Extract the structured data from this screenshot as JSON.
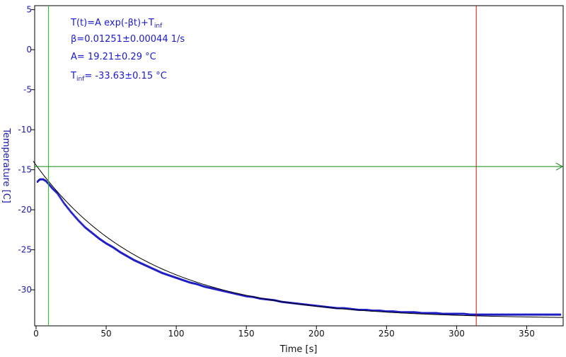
{
  "chart_data": {
    "type": "scatter",
    "xlabel": "Time [s]",
    "ylabel": "Temperature [C]",
    "xlim": [
      -1,
      376
    ],
    "ylim": [
      -34.5,
      5.5
    ],
    "x_ticks": [
      0,
      50,
      100,
      150,
      200,
      250,
      300,
      350
    ],
    "y_ticks": [
      5,
      0,
      -5,
      -10,
      -15,
      -20,
      -25,
      -30
    ],
    "grid": false,
    "annotation": {
      "formula_main": "T(t)=A exp(-βt)+T",
      "formula_sub": "inf",
      "beta": "β=0.01251±0.00044 1/s",
      "A": "A= 19.21±0.29 °C",
      "tinf_main": "T",
      "tinf_sub": "inf",
      "tinf_rest": "= -33.63±0.15 °C"
    },
    "fit": {
      "A": 19.21,
      "beta": 0.01251,
      "T_inf": -33.63,
      "t_start": -2,
      "t_end": 376,
      "color": "#000000"
    },
    "data_series": {
      "color": "#1f1fc4",
      "points": [
        [
          1,
          -16.5
        ],
        [
          2,
          -16.3
        ],
        [
          3,
          -16.2
        ],
        [
          4,
          -16.2
        ],
        [
          5,
          -16.2
        ],
        [
          6,
          -16.3
        ],
        [
          7,
          -16.4
        ],
        [
          8,
          -16.6
        ],
        [
          9,
          -16.8
        ],
        [
          10,
          -17.0
        ],
        [
          12,
          -17.4
        ],
        [
          15,
          -17.9
        ],
        [
          20,
          -19.2
        ],
        [
          25,
          -20.3
        ],
        [
          30,
          -21.3
        ],
        [
          35,
          -22.2
        ],
        [
          40,
          -22.9
        ],
        [
          45,
          -23.6
        ],
        [
          50,
          -24.2
        ],
        [
          55,
          -24.7
        ],
        [
          60,
          -25.3
        ],
        [
          65,
          -25.8
        ],
        [
          70,
          -26.3
        ],
        [
          75,
          -26.7
        ],
        [
          80,
          -27.1
        ],
        [
          85,
          -27.5
        ],
        [
          90,
          -27.9
        ],
        [
          95,
          -28.2
        ],
        [
          100,
          -28.5
        ],
        [
          105,
          -28.8
        ],
        [
          110,
          -29.1
        ],
        [
          115,
          -29.3
        ],
        [
          120,
          -29.6
        ],
        [
          125,
          -29.8
        ],
        [
          130,
          -30.0
        ],
        [
          135,
          -30.2
        ],
        [
          140,
          -30.4
        ],
        [
          145,
          -30.6
        ],
        [
          150,
          -30.8
        ],
        [
          155,
          -30.9
        ],
        [
          160,
          -31.1
        ],
        [
          165,
          -31.2
        ],
        [
          170,
          -31.3
        ],
        [
          175,
          -31.5
        ],
        [
          180,
          -31.6
        ],
        [
          185,
          -31.7
        ],
        [
          190,
          -31.8
        ],
        [
          195,
          -31.9
        ],
        [
          200,
          -32.0
        ],
        [
          205,
          -32.1
        ],
        [
          210,
          -32.2
        ],
        [
          215,
          -32.3
        ],
        [
          220,
          -32.3
        ],
        [
          225,
          -32.4
        ],
        [
          230,
          -32.5
        ],
        [
          235,
          -32.5
        ],
        [
          240,
          -32.6
        ],
        [
          245,
          -32.6
        ],
        [
          250,
          -32.7
        ],
        [
          255,
          -32.7
        ],
        [
          260,
          -32.8
        ],
        [
          265,
          -32.8
        ],
        [
          270,
          -32.8
        ],
        [
          275,
          -32.9
        ],
        [
          280,
          -32.9
        ],
        [
          285,
          -32.9
        ],
        [
          290,
          -33.0
        ],
        [
          295,
          -33.0
        ],
        [
          300,
          -33.0
        ],
        [
          305,
          -33.0
        ],
        [
          310,
          -33.1
        ],
        [
          315,
          -33.1
        ],
        [
          320,
          -33.1
        ],
        [
          325,
          -33.1
        ],
        [
          330,
          -33.1
        ],
        [
          335,
          -33.1
        ],
        [
          340,
          -33.1
        ],
        [
          345,
          -33.1
        ],
        [
          350,
          -33.1
        ],
        [
          355,
          -33.1
        ],
        [
          360,
          -33.1
        ],
        [
          365,
          -33.1
        ],
        [
          370,
          -33.1
        ],
        [
          374,
          -33.1
        ]
      ]
    },
    "markers": {
      "green_vertical_x": 8.8,
      "red_vertical_x": 314,
      "horizontal_y": -14.6,
      "green_color": "#22bb22",
      "red_color": "#cc1111",
      "hline_color": "#118811"
    }
  }
}
